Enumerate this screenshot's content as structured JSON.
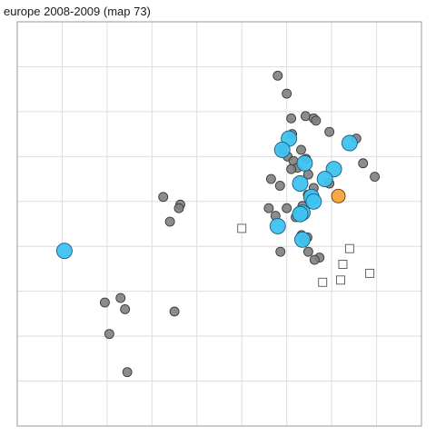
{
  "chart_data": {
    "type": "scatter",
    "title": "europe 2008-2009  (map 73)",
    "xlabel": "",
    "ylabel": "",
    "grid": true,
    "grid_color": "#dedede",
    "panel_border_color": "#9a9a9a",
    "xlim": [
      0,
      9
    ],
    "ylim": [
      0,
      9
    ],
    "gridlines_x": [
      1,
      2,
      3,
      4,
      5,
      6,
      7,
      8
    ],
    "gridlines_y": [
      1,
      2,
      3,
      4,
      5,
      6,
      7,
      8
    ],
    "series": [
      {
        "marker": "circle",
        "size": "small",
        "fill": "#808080",
        "stroke": "#3a3a3a",
        "opacity": 0.9,
        "points": [
          [
            5.8,
            7.8
          ],
          [
            6.0,
            7.4
          ],
          [
            6.1,
            6.85
          ],
          [
            6.42,
            6.9
          ],
          [
            6.6,
            6.85
          ],
          [
            6.65,
            6.8
          ],
          [
            6.12,
            6.5
          ],
          [
            6.95,
            6.55
          ],
          [
            7.55,
            6.4
          ],
          [
            5.9,
            6.15
          ],
          [
            6.32,
            6.15
          ],
          [
            6.02,
            6.0
          ],
          [
            6.15,
            5.9
          ],
          [
            6.24,
            5.75
          ],
          [
            6.48,
            5.6
          ],
          [
            6.1,
            5.72
          ],
          [
            6.43,
            5.95
          ],
          [
            7.7,
            5.85
          ],
          [
            7.96,
            5.55
          ],
          [
            5.65,
            5.5
          ],
          [
            5.85,
            5.35
          ],
          [
            6.6,
            5.3
          ],
          [
            6.95,
            5.4
          ],
          [
            6.47,
            5.15
          ],
          [
            6.0,
            4.85
          ],
          [
            6.2,
            4.65
          ],
          [
            6.35,
            4.9
          ],
          [
            5.6,
            4.85
          ],
          [
            5.75,
            4.68
          ],
          [
            6.46,
            4.2
          ],
          [
            6.33,
            4.25
          ],
          [
            6.4,
            4.12
          ],
          [
            6.48,
            3.88
          ],
          [
            5.86,
            3.88
          ],
          [
            6.73,
            3.75
          ],
          [
            6.62,
            3.7
          ],
          [
            3.25,
            5.1
          ],
          [
            3.63,
            4.93
          ],
          [
            3.6,
            4.85
          ],
          [
            3.4,
            4.55
          ],
          [
            1.95,
            2.75
          ],
          [
            2.3,
            2.85
          ],
          [
            2.4,
            2.6
          ],
          [
            2.05,
            2.05
          ],
          [
            3.5,
            2.55
          ],
          [
            2.45,
            1.2
          ]
        ]
      },
      {
        "marker": "circle",
        "size": "large",
        "fill": "#3ec3f0",
        "stroke": "#1e5a78",
        "opacity": 0.95,
        "points": [
          [
            6.05,
            6.4
          ],
          [
            5.9,
            6.15
          ],
          [
            7.4,
            6.3
          ],
          [
            6.4,
            5.85
          ],
          [
            7.05,
            5.72
          ],
          [
            6.3,
            5.4
          ],
          [
            6.85,
            5.5
          ],
          [
            6.55,
            5.1
          ],
          [
            6.6,
            5.0
          ],
          [
            6.35,
            4.75
          ],
          [
            6.3,
            4.72
          ],
          [
            5.8,
            4.45
          ],
          [
            6.35,
            4.15
          ],
          [
            1.05,
            3.9
          ]
        ]
      },
      {
        "marker": "circle",
        "size": "medium",
        "fill": "#f9a43a",
        "stroke": "#5a3a10",
        "opacity": 0.95,
        "points": [
          [
            7.15,
            5.12
          ]
        ]
      },
      {
        "marker": "square",
        "size": "small",
        "fill": "#ffffff",
        "stroke": "#555555",
        "opacity": 1,
        "points": [
          [
            5.0,
            4.4
          ],
          [
            7.4,
            3.95
          ],
          [
            7.25,
            3.6
          ],
          [
            7.85,
            3.4
          ],
          [
            6.8,
            3.2
          ],
          [
            7.2,
            3.25
          ]
        ]
      }
    ]
  }
}
